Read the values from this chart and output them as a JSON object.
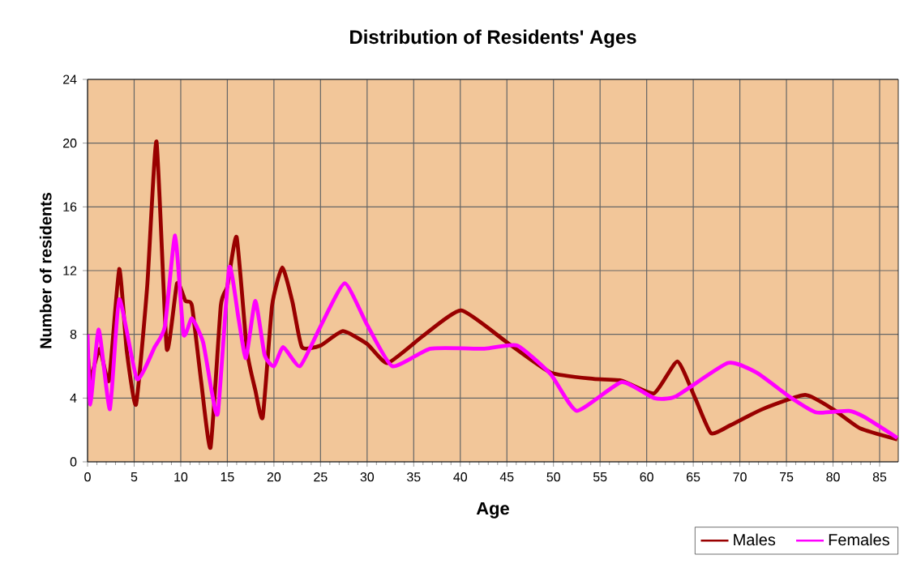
{
  "chart_data": {
    "type": "line",
    "title": "Distribution of Residents' Ages",
    "xlabel": "Age",
    "ylabel": "Number of residents",
    "xlim": [
      0,
      87
    ],
    "xticks": [
      0,
      5,
      10,
      15,
      20,
      25,
      30,
      35,
      40,
      45,
      50,
      55,
      60,
      65,
      70,
      75,
      80,
      85
    ],
    "ylim": [
      0,
      24
    ],
    "yticks": [
      0,
      4,
      8,
      12,
      16,
      20,
      24
    ],
    "grid": true,
    "legend": "bottom right",
    "marker": "none",
    "line_style": "solid",
    "series": [
      {
        "name": "Males",
        "color": "#990000",
        "x": [
          0,
          0.3,
          1.3,
          2.3,
          3.4,
          4.2,
          5.2,
          6.4,
          7.4,
          8.5,
          9.6,
          10.5,
          11.2,
          12.2,
          13.2,
          14.3,
          15,
          16,
          17.1,
          18,
          18.8,
          19.8,
          20.9,
          22,
          23,
          25,
          27.4,
          30,
          32.2,
          36,
          40.1,
          45,
          49.7,
          54.3,
          57.3,
          60.8,
          63.3,
          65.2,
          66.9,
          69,
          72.4,
          77,
          80,
          82.9,
          86.9
        ],
        "values": [
          7,
          5.2,
          7.1,
          5.1,
          12.1,
          7,
          3.6,
          11,
          20.1,
          7.1,
          11.2,
          10.1,
          9.8,
          5,
          0.9,
          9.8,
          11,
          14.1,
          7,
          4.5,
          2.8,
          9.8,
          12.2,
          10,
          7.2,
          7.3,
          8.2,
          7.4,
          6.2,
          7.9,
          9.5,
          7.5,
          5.6,
          5.2,
          5.1,
          4.3,
          6.3,
          4,
          1.8,
          2.3,
          3.3,
          4.2,
          3.3,
          2.1,
          1.4
        ]
      },
      {
        "name": "Females",
        "color": "#ff00ff",
        "x": [
          0,
          0.3,
          1.2,
          2.4,
          3.4,
          5.3,
          7.2,
          8.3,
          9.4,
          10.3,
          11.2,
          12.4,
          13.3,
          14,
          15.2,
          16.2,
          17,
          18,
          19,
          20,
          21,
          22.8,
          25,
          27.6,
          30,
          32.7,
          36.8,
          42.6,
          46.1,
          49.7,
          52.5,
          57.3,
          60.8,
          63.1,
          68.7,
          71.8,
          75.3,
          78.2,
          81.7,
          83.4,
          86.9
        ],
        "values": [
          8,
          3.6,
          8.3,
          3.3,
          10.2,
          5.2,
          7.2,
          8.5,
          14.2,
          8,
          9,
          7.5,
          4.5,
          3.1,
          12.2,
          9,
          6.5,
          10.1,
          6.7,
          6,
          7.2,
          6,
          8.5,
          11.2,
          8.6,
          6,
          7.1,
          7.1,
          7.3,
          5.5,
          3.2,
          5,
          4,
          4.1,
          6.2,
          5.6,
          4.1,
          3.1,
          3.2,
          2.8,
          1.5
        ]
      }
    ]
  }
}
